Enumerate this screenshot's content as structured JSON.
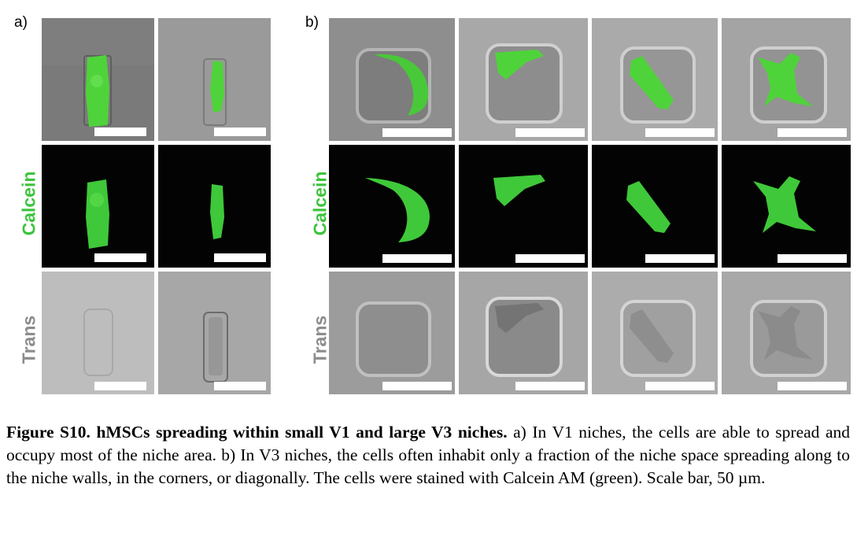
{
  "figure": {
    "panel_a_label": "a)",
    "panel_b_label": "b)",
    "row_labels": {
      "calcein": "Calcein",
      "trans": "Trans"
    },
    "colors": {
      "calcein_label": "#3cc43c",
      "trans_label": "#8c8c8c",
      "cell_green": "#3fd23a"
    }
  },
  "caption": {
    "title": "Figure S10. hMSCs spreading within small V1 and large V3 niches.",
    "body": " a) In V1 niches, the cells are able to spread and occupy most of the niche area. b) In V3 niches, the cells often inhabit only a fraction of the niche space spreading along to the niche walls, in the corners, or diagonally. The cells were stained with Calcein AM (green). Scale bar, 50 µm."
  }
}
